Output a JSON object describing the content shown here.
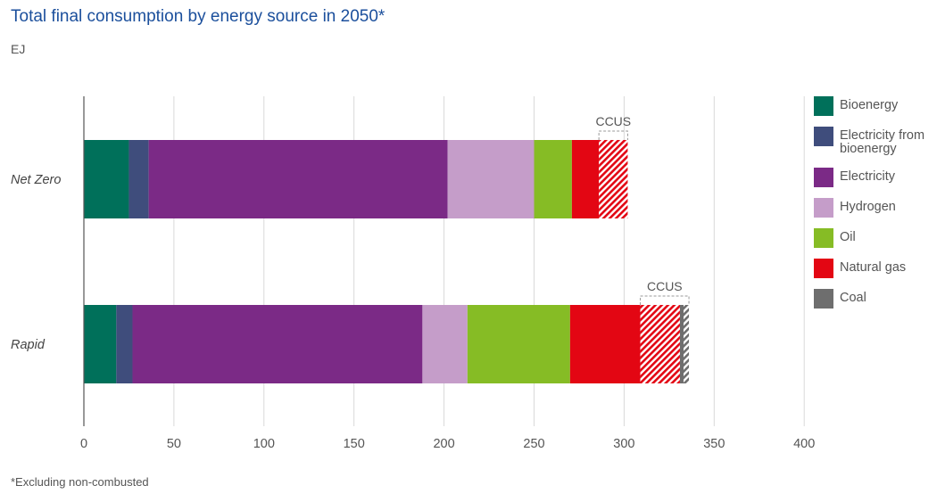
{
  "title": "Total final consumption by energy source in 2050*",
  "unit_label": "EJ",
  "footnote": "*Excluding non-combusted",
  "ccus_label": "CCUS",
  "colors": {
    "bioenergy": "#00705a",
    "elec_bio": "#3f4d7c",
    "electricity": "#7b2a86",
    "hydrogen": "#c59dc9",
    "oil": "#86bc25",
    "natural_gas": "#e30613",
    "coal": "#6e6e6e"
  },
  "legend": [
    {
      "key": "bioenergy",
      "label": "Bioenergy"
    },
    {
      "key": "elec_bio",
      "label": "Electricity from bioenergy"
    },
    {
      "key": "electricity",
      "label": "Electricity"
    },
    {
      "key": "hydrogen",
      "label": "Hydrogen"
    },
    {
      "key": "oil",
      "label": "Oil"
    },
    {
      "key": "natural_gas",
      "label": "Natural gas"
    },
    {
      "key": "coal",
      "label": "Coal"
    }
  ],
  "chart_data": {
    "type": "bar",
    "orientation": "horizontal",
    "stacked": true,
    "title": "Total final consumption by energy source in 2050*",
    "unit": "EJ",
    "categories": [
      "Net Zero",
      "Rapid"
    ],
    "xlim": [
      0,
      400
    ],
    "xticks": [
      0,
      50,
      100,
      150,
      200,
      250,
      300,
      350,
      400
    ],
    "grid": "vertical",
    "legend_position": "right",
    "series": [
      {
        "name": "Bioenergy",
        "key": "bioenergy",
        "values": [
          25,
          18
        ],
        "ccus_hatched": [
          0,
          0
        ]
      },
      {
        "name": "Electricity from bioenergy",
        "key": "elec_bio",
        "values": [
          11,
          9
        ],
        "ccus_hatched": [
          0,
          0
        ]
      },
      {
        "name": "Electricity",
        "key": "electricity",
        "values": [
          166,
          161
        ],
        "ccus_hatched": [
          0,
          0
        ]
      },
      {
        "name": "Hydrogen",
        "key": "hydrogen",
        "values": [
          48,
          25
        ],
        "ccus_hatched": [
          0,
          0
        ]
      },
      {
        "name": "Oil",
        "key": "oil",
        "values": [
          21,
          57
        ],
        "ccus_hatched": [
          0,
          0
        ]
      },
      {
        "name": "Natural gas",
        "key": "natural_gas",
        "values": [
          31,
          61
        ],
        "ccus_hatched": [
          16,
          22
        ]
      },
      {
        "name": "Coal",
        "key": "coal",
        "values": [
          0,
          5
        ],
        "ccus_hatched": [
          0,
          3
        ]
      }
    ],
    "annotations": [
      "CCUS",
      "CCUS"
    ]
  }
}
